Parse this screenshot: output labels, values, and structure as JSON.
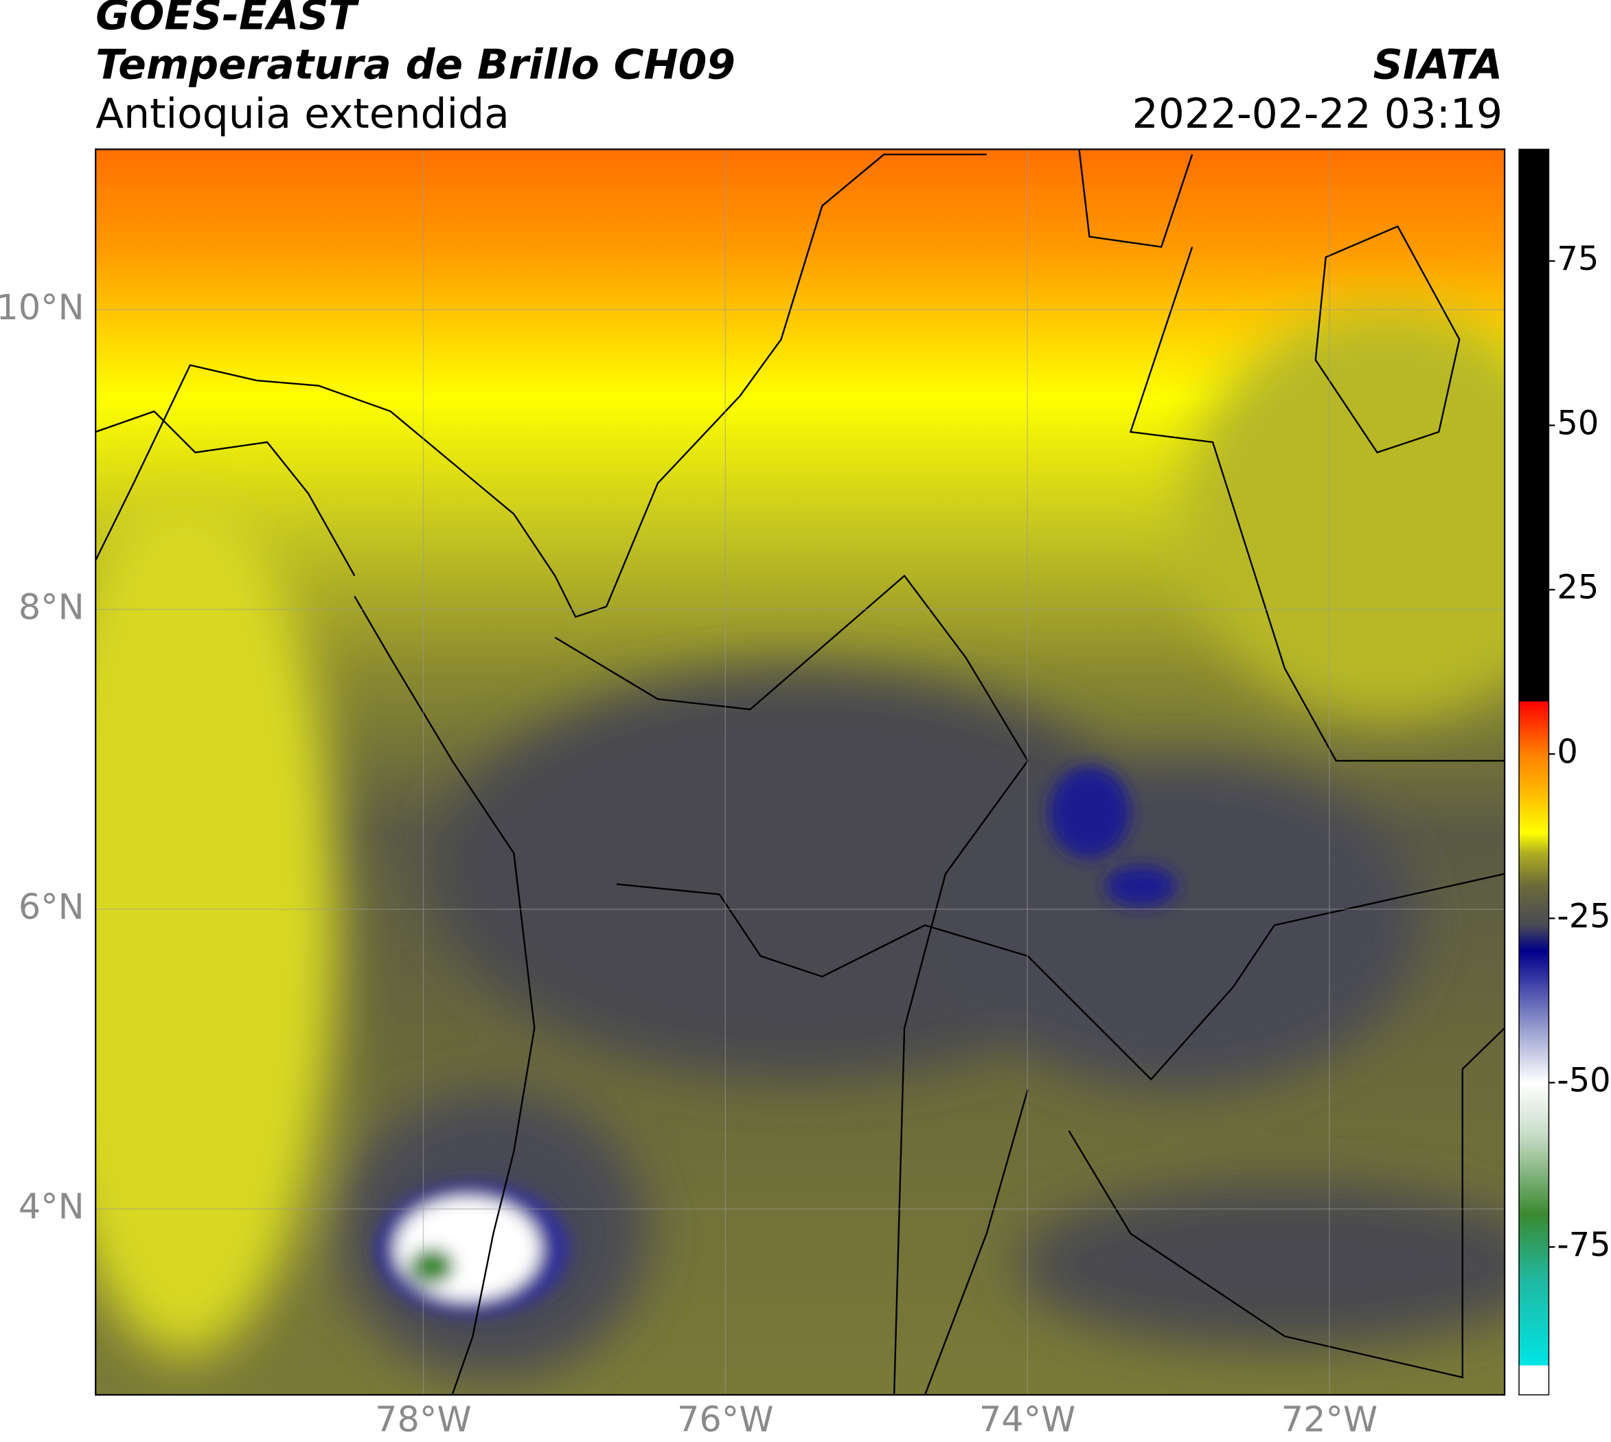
{
  "header": {
    "title": "GOES-EAST",
    "subtitle": "Temperatura de Brillo CH09",
    "region": "Antioquia extendida",
    "source": "SIATA",
    "datetime": "2022-02-22 03:19"
  },
  "map": {
    "xlim": [
      -80.17,
      -70.84
    ],
    "ylim": [
      2.76,
      11.07
    ],
    "grid": true,
    "xticks": [
      {
        "value": -78,
        "label": "78°W"
      },
      {
        "value": -76,
        "label": "76°W"
      },
      {
        "value": -74,
        "label": "74°W"
      },
      {
        "value": -72,
        "label": "72°W"
      }
    ],
    "yticks": [
      {
        "value": 10,
        "label": "10°N"
      },
      {
        "value": 8,
        "label": "8°N"
      },
      {
        "value": 6,
        "label": "6°N"
      },
      {
        "value": 4,
        "label": "4°N"
      }
    ]
  },
  "colorbar": {
    "lim": [
      -97.5,
      92
    ],
    "ticks": [
      75,
      50,
      25,
      0,
      -25,
      -50,
      -75
    ],
    "stops": [
      [
        -97.5,
        "#ffffff"
      ],
      [
        -93,
        "#ffffff"
      ],
      [
        -93,
        "#00e5e5"
      ],
      [
        -80,
        "#20b8a0"
      ],
      [
        -70,
        "#3a8a30"
      ],
      [
        -58,
        "#c8dcc8"
      ],
      [
        -50,
        "#ffffff"
      ],
      [
        -42,
        "#9aa0d0"
      ],
      [
        -30,
        "#00008b"
      ],
      [
        -26,
        "#4a4a55"
      ],
      [
        -20,
        "#6b6b3a"
      ],
      [
        -15,
        "#b0b020"
      ],
      [
        -12,
        "#ffff00"
      ],
      [
        -5,
        "#ffb000"
      ],
      [
        0,
        "#ff8000"
      ],
      [
        8,
        "#ff0000"
      ],
      [
        8,
        "#000000"
      ],
      [
        92,
        "#000000"
      ]
    ]
  }
}
